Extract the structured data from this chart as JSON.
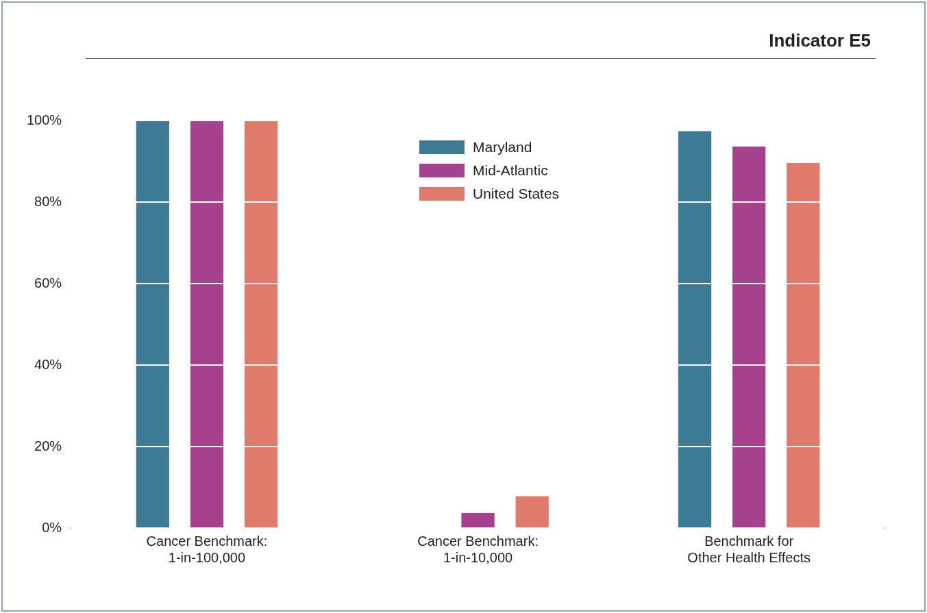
{
  "chart_data": {
    "type": "bar",
    "title": "Indicator E5",
    "categories": [
      "Cancer Benchmark:\n1-in-100,000",
      "Cancer Benchmark:\n1-in-10,000",
      "Benchmark for\nOther Health Effects"
    ],
    "series": [
      {
        "name": "Maryland",
        "color": "#3d7a96",
        "values": [
          100,
          0,
          97.4
        ]
      },
      {
        "name": "Mid-Atlantic",
        "color": "#a64190",
        "values": [
          100,
          3.7,
          93.6
        ]
      },
      {
        "name": "United States",
        "color": "#e07a6a",
        "values": [
          100,
          7.8,
          89.6
        ]
      }
    ],
    "ylim": [
      0,
      100
    ],
    "yticks": [
      {
        "value": 0,
        "label": "0%"
      },
      {
        "value": 20,
        "label": "20%"
      },
      {
        "value": 40,
        "label": "40%"
      },
      {
        "value": 60,
        "label": "60%"
      },
      {
        "value": 80,
        "label": "80%"
      },
      {
        "value": 100,
        "label": "100%"
      }
    ],
    "grid": "y",
    "legend": "top"
  }
}
